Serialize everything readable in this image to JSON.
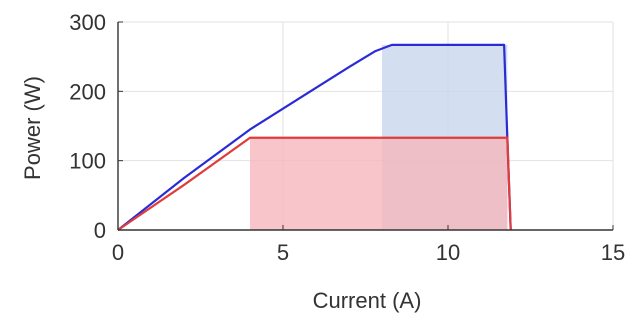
{
  "chart_data": {
    "type": "line",
    "xlabel": "Current (A)",
    "ylabel": "Power (W)",
    "xlim": [
      0,
      15
    ],
    "ylim": [
      0,
      300
    ],
    "xticks": [
      0,
      5,
      10,
      15
    ],
    "yticks": [
      0,
      100,
      200,
      300
    ],
    "grid": true,
    "series": [
      {
        "color": "#2b2bd6",
        "x": [
          0,
          2,
          4,
          6,
          7,
          7.8,
          8.3,
          11.7,
          11.8,
          11.9
        ],
        "y": [
          0,
          75,
          145,
          205,
          235,
          258,
          267,
          267,
          130,
          0
        ]
      },
      {
        "color": "#e03c3c",
        "x": [
          0,
          2,
          4,
          4.1,
          11.8,
          11.9
        ],
        "y": [
          0,
          65,
          133,
          133,
          133,
          0
        ]
      }
    ],
    "shaded_regions": [
      {
        "color": "#c9d6ee",
        "x": [
          8,
          11.8
        ],
        "y": [
          0,
          267
        ]
      },
      {
        "color": "#f5b7bd",
        "x": [
          4,
          11.8
        ],
        "y": [
          0,
          133
        ]
      }
    ]
  }
}
